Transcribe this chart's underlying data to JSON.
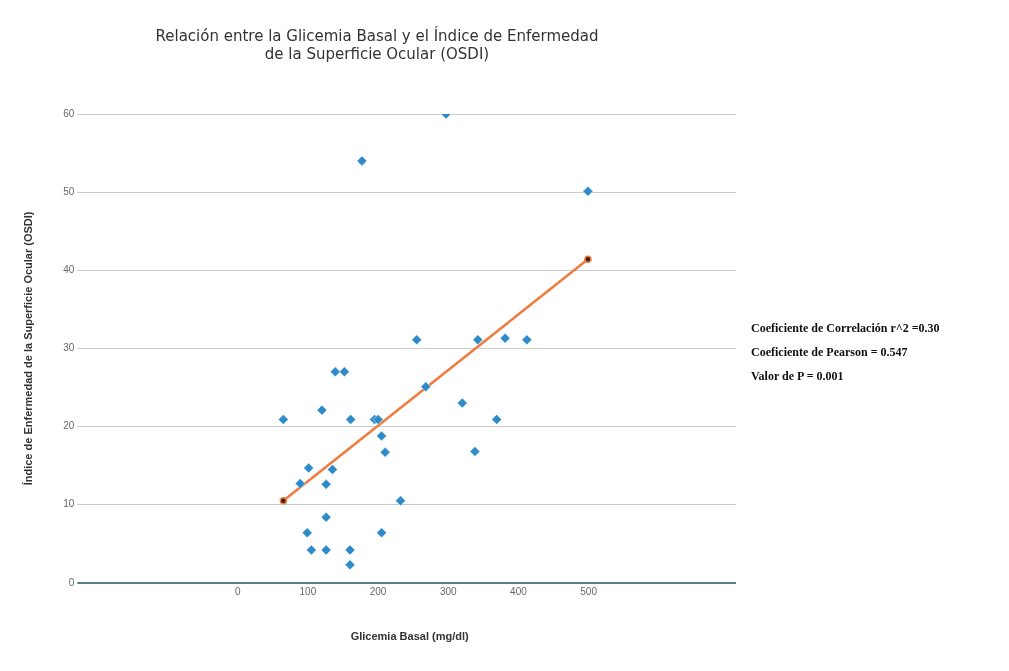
{
  "chart_data": {
    "type": "scatter",
    "title": "Relación entre la Glicemia Basal y el Índice de Enfermedad\nde la Superficie Ocular (OSDI)",
    "xlabel": "Glicemia Basal (mg/dl)",
    "ylabel": "Índice de Enfermedad de la Superficie Ocular (OSDI)",
    "annotations": [
      "Coeficiente de Correlación r^2 =0.30",
      "Coeficiente de Pearson = 0.547",
      "Valor de P = 0.001"
    ],
    "xlim": [
      -220,
      710
    ],
    "xticks": [
      0,
      100,
      200,
      300,
      400,
      500
    ],
    "ylim": [
      0,
      60
    ],
    "yticks": [
      0,
      10,
      20,
      30,
      40,
      50,
      60
    ],
    "grid": "y",
    "legend": false,
    "series": [
      {
        "color": "#2e8bc9",
        "marker": "diamond",
        "x": [
          65,
          120,
          161,
          195,
          200,
          205,
          210,
          101,
          135,
          89,
          126,
          232,
          126,
          99,
          205,
          105,
          126,
          160,
          160,
          268,
          139,
          152,
          297,
          177,
          499,
          255,
          342,
          381,
          412,
          320,
          369,
          338
        ],
        "values": [
          20.9,
          22.1,
          20.9,
          20.9,
          20.9,
          18.8,
          16.7,
          14.7,
          14.5,
          12.7,
          12.6,
          10.5,
          8.4,
          6.4,
          6.4,
          4.2,
          4.2,
          4.2,
          2.3,
          25.1,
          27,
          27,
          60,
          54,
          50.1,
          31.1,
          31.1,
          31.3,
          31.1,
          23,
          20.9,
          16.8
        ]
      },
      {
        "type": "line",
        "color": "#f07b3f",
        "marker": "circle",
        "line_style": "solid",
        "x": [
          65,
          499
        ],
        "values": [
          10.5,
          41.4
        ]
      }
    ]
  }
}
